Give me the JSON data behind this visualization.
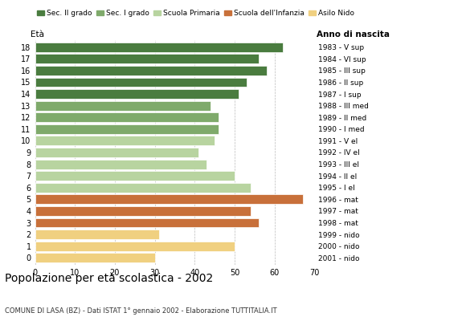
{
  "ages": [
    18,
    17,
    16,
    15,
    14,
    13,
    12,
    11,
    10,
    9,
    8,
    7,
    6,
    5,
    4,
    3,
    2,
    1,
    0
  ],
  "values": [
    62,
    56,
    58,
    53,
    51,
    44,
    46,
    46,
    45,
    41,
    43,
    50,
    54,
    67,
    54,
    56,
    31,
    50,
    30
  ],
  "right_labels": [
    "1983 - V sup",
    "1984 - VI sup",
    "1985 - III sup",
    "1986 - II sup",
    "1987 - I sup",
    "1988 - III med",
    "1989 - II med",
    "1990 - I med",
    "1991 - V el",
    "1992 - IV el",
    "1993 - III el",
    "1994 - II el",
    "1995 - I el",
    "1996 - mat",
    "1997 - mat",
    "1998 - mat",
    "1999 - nido",
    "2000 - nido",
    "2001 - nido"
  ],
  "bar_colors": [
    "#4a7c3f",
    "#4a7c3f",
    "#4a7c3f",
    "#4a7c3f",
    "#4a7c3f",
    "#7faa6b",
    "#7faa6b",
    "#7faa6b",
    "#b8d4a0",
    "#b8d4a0",
    "#b8d4a0",
    "#b8d4a0",
    "#b8d4a0",
    "#c8703a",
    "#c8703a",
    "#c8703a",
    "#f0d080",
    "#f0d080",
    "#f0d080"
  ],
  "title": "Popolazione per età scolastica - 2002",
  "subtitle": "COMUNE DI LASA (BZ) - Dati ISTAT 1° gennaio 2002 - Elaborazione TUTTITALIA.IT",
  "label_eta": "Età",
  "label_anno": "Anno di nascita",
  "xlim": [
    0,
    70
  ],
  "xticks": [
    0,
    10,
    20,
    30,
    40,
    50,
    60,
    70
  ],
  "background_color": "#ffffff",
  "legend_labels": [
    "Sec. II grado",
    "Sec. I grado",
    "Scuola Primaria",
    "Scuola dell'Infanzia",
    "Asilo Nido"
  ],
  "legend_colors": [
    "#4a7c3f",
    "#7faa6b",
    "#b8d4a0",
    "#c8703a",
    "#f0d080"
  ]
}
